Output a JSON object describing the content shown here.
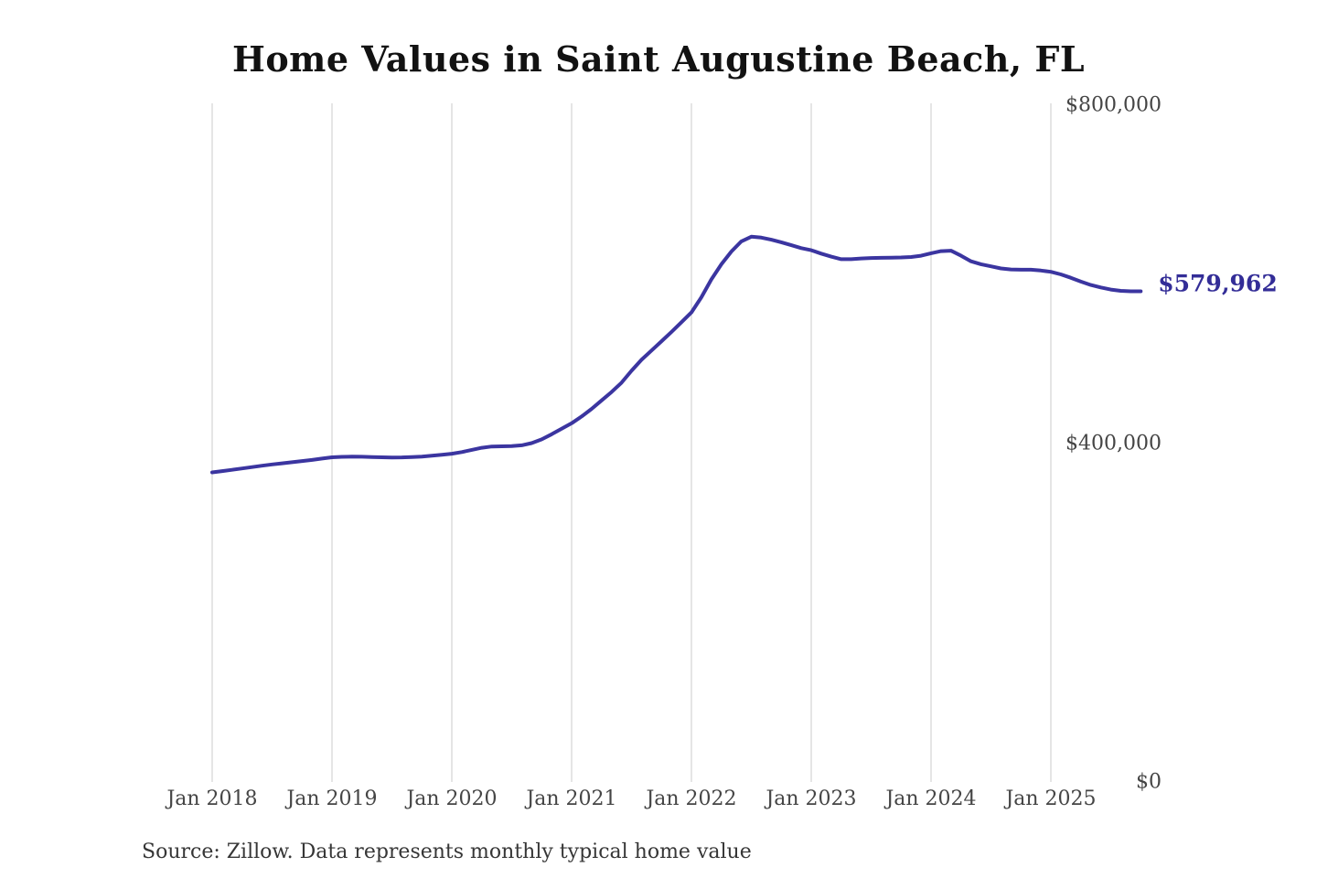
{
  "chart_data": {
    "type": "line",
    "title": "Home Values in Saint Augustine Beach, FL",
    "source": "Source: Zillow. Data represents monthly typical home value",
    "end_label": "$579,962",
    "latest_value": 579962,
    "ylim": [
      0,
      800000
    ],
    "grid": "vertical-only",
    "legend": "none",
    "x_ticks": [
      "Jan 2018",
      "Jan 2019",
      "Jan 2020",
      "Jan 2021",
      "Jan 2022",
      "Jan 2023",
      "Jan 2024",
      "Jan 2025"
    ],
    "y_ticks": [
      {
        "label": "$0",
        "value": 0
      },
      {
        "label": "$400,000",
        "value": 400000
      },
      {
        "label": "$800,000",
        "value": 800000
      }
    ],
    "series": [
      {
        "name": "Monthly typical home value",
        "start_month": "2018-01",
        "end_month": "2025-10",
        "values": [
          366000,
          367500,
          369000,
          370600,
          372200,
          373800,
          375300,
          376700,
          378000,
          379300,
          380700,
          382300,
          383800,
          384300,
          384500,
          384400,
          384100,
          383800,
          383600,
          383700,
          384100,
          384700,
          385600,
          386700,
          388000,
          390000,
          392500,
          395000,
          396500,
          396800,
          397000,
          398000,
          400500,
          405000,
          411000,
          417500,
          424000,
          432000,
          441000,
          451000,
          461000,
          472000,
          486000,
          499000,
          510000,
          521000,
          532000,
          543500,
          555000,
          573000,
          594000,
          612000,
          627000,
          639000,
          644500,
          643500,
          641000,
          638000,
          634500,
          631000,
          628500,
          624500,
          621000,
          618000,
          618000,
          618800,
          619300,
          619600,
          619800,
          620000,
          620500,
          622000,
          625000,
          627500,
          628000,
          622000,
          615500,
          612000,
          609500,
          607000,
          605800,
          605500,
          605500,
          604500,
          603000,
          600000,
          596000,
          591500,
          587500,
          584500,
          582000,
          580500,
          580000,
          579962
        ]
      }
    ],
    "colors": {
      "line": "#3b35a0",
      "end_label": "#332d97",
      "gridline": "#cbcbcb",
      "axis_text": "#454545",
      "title_text": "#121212",
      "source_text": "#363636",
      "background": "#ffffff"
    }
  }
}
